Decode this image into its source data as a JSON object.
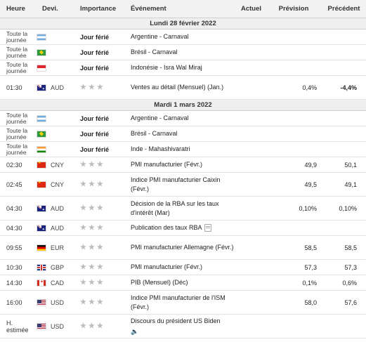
{
  "headers": {
    "time": "Heure",
    "currency": "Devi.",
    "importance": "Importance",
    "event": "Événement",
    "actual": "Actuel",
    "forecast": "Prévision",
    "previous": "Précédent"
  },
  "days": [
    {
      "date": "Lundi 28 février 2022",
      "rows": [
        {
          "time": "Toute la journée",
          "flag": "argentina-flag-icon",
          "currency": "",
          "importance": "Jour férié",
          "event": "Argentine - Carnaval",
          "actual": "",
          "forecast": "",
          "previous": ""
        },
        {
          "time": "Toute la journée",
          "flag": "brazil-flag-icon",
          "currency": "",
          "importance": "Jour férié",
          "event": "Brésil - Carnaval",
          "actual": "",
          "forecast": "",
          "previous": ""
        },
        {
          "time": "Toute la journée",
          "flag": "indonesia-flag-icon",
          "currency": "",
          "importance": "Jour férié",
          "event": "Indonésie - Isra Wal Miraj",
          "actual": "",
          "forecast": "",
          "previous": ""
        },
        {
          "time": "01:30",
          "flag": "australia-flag-icon",
          "currency": "AUD",
          "importance": "",
          "event": "Ventes au détail (Mensuel) (Jan.)",
          "actual": "",
          "forecast": "0,4%",
          "previous": "-4,4%"
        }
      ]
    },
    {
      "date": "Mardi 1 mars 2022",
      "rows": [
        {
          "time": "Toute la journée",
          "flag": "argentina-flag-icon",
          "currency": "",
          "importance": "Jour férié",
          "event": "Argentine - Carnaval",
          "actual": "",
          "forecast": "",
          "previous": ""
        },
        {
          "time": "Toute la journée",
          "flag": "brazil-flag-icon",
          "currency": "",
          "importance": "Jour férié",
          "event": "Brésil - Carnaval",
          "actual": "",
          "forecast": "",
          "previous": ""
        },
        {
          "time": "Toute la journée",
          "flag": "india-flag-icon",
          "currency": "",
          "importance": "Jour férié",
          "event": "Inde - Mahashivaratri",
          "actual": "",
          "forecast": "",
          "previous": ""
        },
        {
          "time": "02:30",
          "flag": "china-flag-icon",
          "currency": "CNY",
          "importance": "",
          "event": "PMI manufacturier (Févr.)",
          "actual": "",
          "forecast": "49,9",
          "previous": "50,1"
        },
        {
          "time": "02:45",
          "flag": "china-flag-icon",
          "currency": "CNY",
          "importance": "",
          "event": "Indice PMI manufacturier Caixin (Févr.)",
          "actual": "",
          "forecast": "49,5",
          "previous": "49,1"
        },
        {
          "time": "04:30",
          "flag": "australia-flag-icon",
          "currency": "AUD",
          "importance": "",
          "event": "Décision de la RBA sur les taux d'intérêt (Mar)",
          "actual": "",
          "forecast": "0,10%",
          "previous": "0,10%"
        },
        {
          "time": "04:30",
          "flag": "australia-flag-icon",
          "currency": "AUD",
          "importance": "",
          "event": "Publication des taux RBA",
          "actual": "",
          "forecast": "",
          "previous": ""
        },
        {
          "time": "09:55",
          "flag": "germany-flag-icon",
          "currency": "EUR",
          "importance": "",
          "event": "PMI manufacturier Allemagne (Févr.)",
          "actual": "",
          "forecast": "58,5",
          "previous": "58,5"
        },
        {
          "time": "10:30",
          "flag": "uk-flag-icon",
          "currency": "GBP",
          "importance": "",
          "event": "PMI manufacturier (Févr.)",
          "actual": "",
          "forecast": "57,3",
          "previous": "57,3"
        },
        {
          "time": "14:30",
          "flag": "canada-flag-icon",
          "currency": "CAD",
          "importance": "",
          "event": "PIB (Mensuel) (Déc)",
          "actual": "",
          "forecast": "0,1%",
          "previous": "0,6%"
        },
        {
          "time": "16:00",
          "flag": "usa-flag-icon",
          "currency": "USD",
          "importance": "",
          "event": "Indice PMI manufacturier de l'ISM (Févr.)",
          "actual": "",
          "forecast": "58,0",
          "previous": "57,6"
        },
        {
          "time": "H. estimée",
          "flag": "usa-flag-icon",
          "currency": "USD",
          "importance": "",
          "event": "Discours du président US Biden",
          "actual": "",
          "forecast": "",
          "previous": ""
        }
      ]
    }
  ]
}
